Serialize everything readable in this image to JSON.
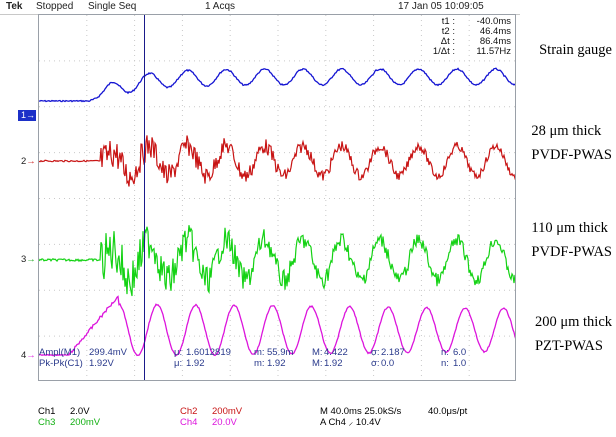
{
  "topbar": {
    "brand": "Tek",
    "status": "Stopped",
    "mode": "Single Seq",
    "acqs": "1 Acqs",
    "datetime": "17 Jan 05 10:09:05"
  },
  "cursors": [
    {
      "label": "t1 :",
      "value": "-40.0ms"
    },
    {
      "label": "t2 :",
      "value": "46.4ms"
    },
    {
      "label": "Δt :",
      "value": "86.4ms"
    },
    {
      "label": "1/Δt :",
      "value": "11.57Hz"
    }
  ],
  "channels": [
    {
      "marker": "1",
      "label_lines": [
        "Strain gauge"
      ],
      "color": "#1414d2"
    },
    {
      "marker": "2",
      "label_lines": [
        "28 μm thick",
        "PVDF-PWAS"
      ],
      "color": "#c81414"
    },
    {
      "marker": "3",
      "label_lines": [
        "110 μm thick",
        "PVDF-PWAS"
      ],
      "color": "#14d214"
    },
    {
      "marker": "4",
      "label_lines": [
        "200 μm thick",
        "PZT-PWAS"
      ],
      "color": "#dc14dc"
    }
  ],
  "measurements": {
    "row1": [
      {
        "label": "Ampl(M1)",
        "value": "299.4mV"
      },
      {
        "label": "μ:",
        "value": "1.6012819"
      },
      {
        "label": "m:",
        "value": "55.9m"
      },
      {
        "label": "M:",
        "value": "4.422"
      },
      {
        "label": "σ:",
        "value": "2.187"
      },
      {
        "label": "n:",
        "value": "6.0"
      }
    ],
    "row2": [
      {
        "label": "Pk-Pk(C1)",
        "value": "1.92V"
      },
      {
        "label": "μ:",
        "value": "1.92"
      },
      {
        "label": "m:",
        "value": "1.92"
      },
      {
        "label": "M:",
        "value": "1.92"
      },
      {
        "label": "σ:",
        "value": "0.0"
      },
      {
        "label": "n:",
        "value": "1.0"
      }
    ]
  },
  "bottom": {
    "ch1": "Ch1",
    "ch1_scale": "2.0V",
    "ch2": "Ch2",
    "ch2_scale": "200mV",
    "ch3": "Ch3",
    "ch3_scale": "200mV",
    "ch4": "Ch4",
    "ch4_scale": "20.0V",
    "timebase": "M 40.0ms 25.0kS/s",
    "sample_interval": "40.0μs/pt",
    "trigger": "A  Ch4  ⸝  10.4V"
  }
}
